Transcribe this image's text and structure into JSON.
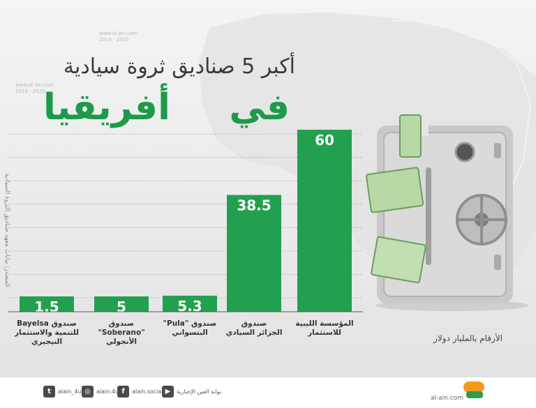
{
  "watermarks": [
    "www.al-ain.com",
    "2019 - 2020"
  ],
  "title": {
    "line1": "أكبر 5 صناديق ثروة سيادية",
    "line2": "في أفريقيا"
  },
  "source_note": "المصدر: بيانات معهد صناديق الثروة السيادية",
  "unit_note": "الأرقام بالمليار دولار",
  "chart_data": {
    "type": "bar",
    "categories": [
      "صندوق Bayelsa\nللتنمية والاستثمار\nالنيجيري",
      "صندوق \"Soberano\"\nالأنجولي",
      "صندوق \"Pula\"\nالبتسواني",
      "صندوق\nالجزائر السيادي",
      "المؤسسة الليبية\nللاستثمار"
    ],
    "values": [
      1.5,
      5,
      5.3,
      38.5,
      60
    ],
    "value_labels": [
      "1.5",
      "5",
      "5.3",
      "38.5",
      "60"
    ],
    "ylim": [
      0,
      60
    ],
    "grid": true,
    "colors": {
      "bar": "#23a04f",
      "bar_label": "#ffffff",
      "grid": "#b5b5b5"
    }
  },
  "footer": {
    "social": [
      {
        "icon": "youtube-icon",
        "glyph": "▶",
        "text": "بوابة العين الإخبارية"
      },
      {
        "icon": "facebook-icon",
        "glyph": "f",
        "text": "alain.social"
      },
      {
        "icon": "instagram-icon",
        "glyph": "◎",
        "text": "alain.4u"
      },
      {
        "icon": "twitter-icon",
        "glyph": "t",
        "text": "alain_4u"
      }
    ],
    "site": "al-ain.com",
    "colors": {
      "logo_orange": "#f39a1e",
      "logo_green": "#2a9d4e"
    }
  }
}
